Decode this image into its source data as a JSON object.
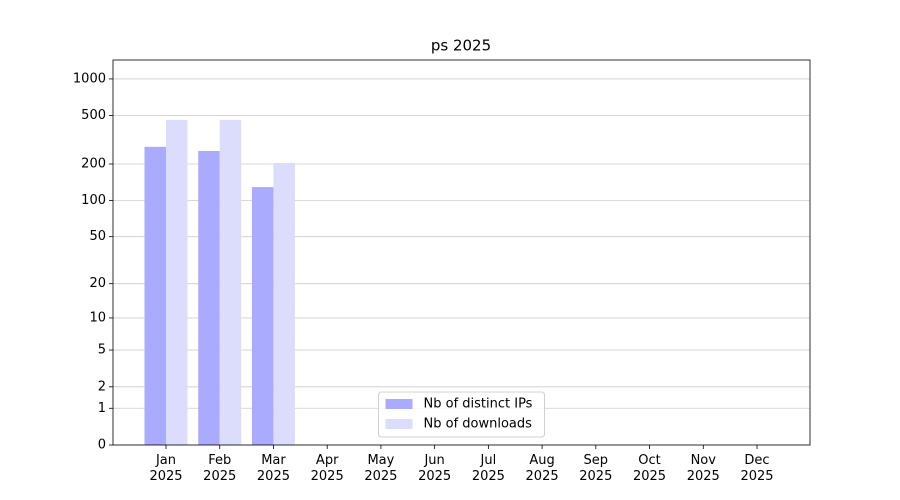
{
  "chart_data": {
    "type": "bar",
    "title": "ps 2025",
    "categories": [
      "Jan 2025",
      "Feb 2025",
      "Mar 2025",
      "Apr 2025",
      "May 2025",
      "Jun 2025",
      "Jul 2025",
      "Aug 2025",
      "Sep 2025",
      "Oct 2025",
      "Nov 2025",
      "Dec 2025"
    ],
    "series": [
      {
        "name": "Nb of distinct IPs",
        "color": "#aaaaff",
        "values": [
          277,
          256,
          129,
          null,
          null,
          null,
          null,
          null,
          null,
          null,
          null,
          null
        ]
      },
      {
        "name": "Nb of downloads",
        "color": "#dcdcfd",
        "values": [
          461,
          461,
          204,
          null,
          null,
          null,
          null,
          null,
          null,
          null,
          null,
          null
        ]
      }
    ],
    "yscale": "log1p",
    "ylim": [
      0,
      1430
    ],
    "yticks": [
      0,
      1,
      2,
      5,
      10,
      20,
      50,
      100,
      200,
      500,
      1000
    ],
    "grid": true,
    "legend": "lower center"
  }
}
